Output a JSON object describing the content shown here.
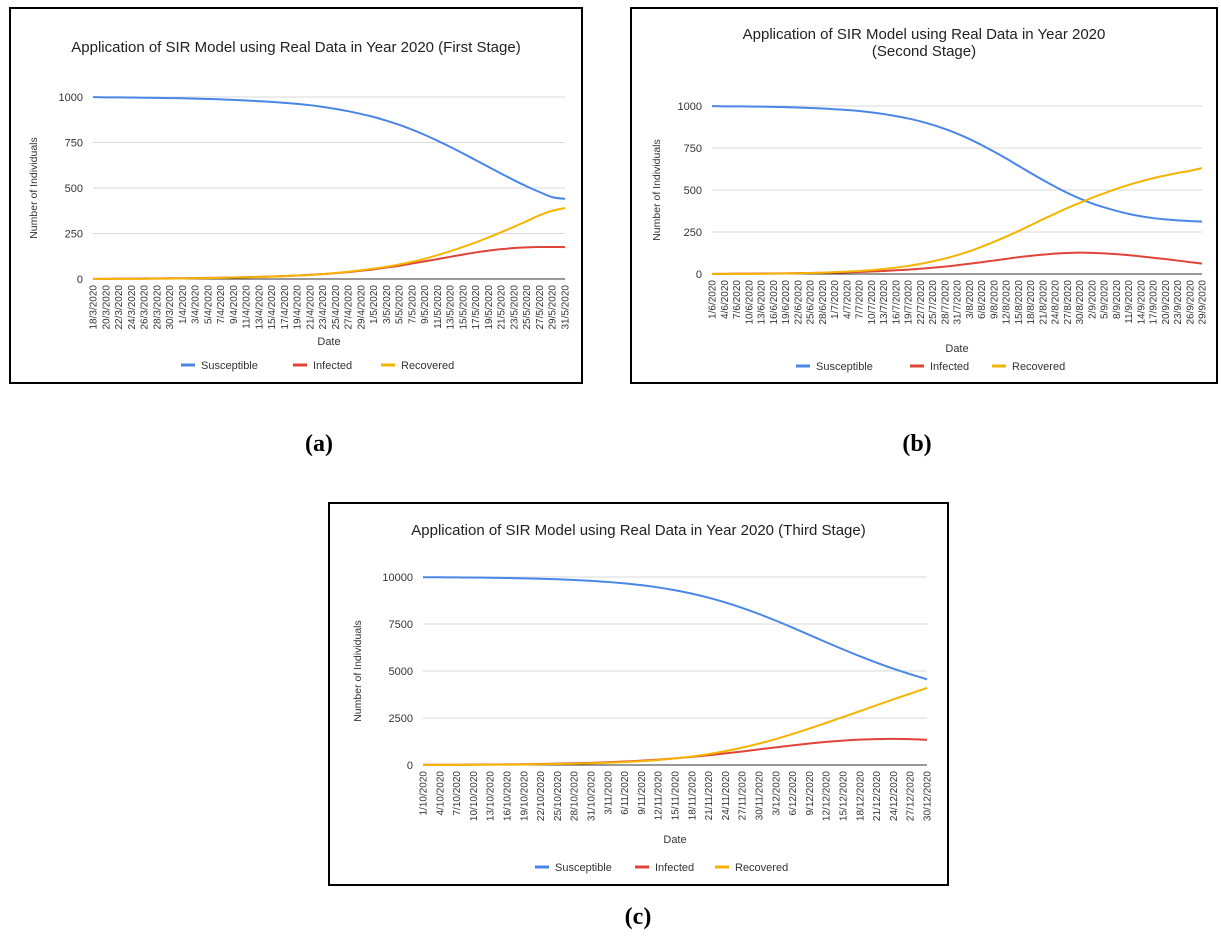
{
  "panels": [
    {
      "id": "a",
      "sublabel": "(a)",
      "chart_data": {
        "type": "line",
        "title": [
          "Application of SIR Model using Real Data in Year 2020 (First Stage)"
        ],
        "xlabel": "Date",
        "ylabel": "Number of Individuals",
        "ylim": [
          0,
          1000
        ],
        "yticks": [
          0,
          250,
          500,
          750,
          1000
        ],
        "grid": true,
        "legend": "bottom",
        "x": [
          "18/3/2020",
          "20/3/2020",
          "22/3/2020",
          "24/3/2020",
          "26/3/2020",
          "28/3/2020",
          "30/3/2020",
          "1/4/2020",
          "3/4/2020",
          "5/4/2020",
          "7/4/2020",
          "9/4/2020",
          "11/4/2020",
          "13/4/2020",
          "15/4/2020",
          "17/4/2020",
          "19/4/2020",
          "21/4/2020",
          "23/4/2020",
          "25/4/2020",
          "27/4/2020",
          "29/4/2020",
          "1/5/2020",
          "3/5/2020",
          "5/5/2020",
          "7/5/2020",
          "9/5/2020",
          "11/5/2020",
          "13/5/2020",
          "15/5/2020",
          "17/5/2020",
          "19/5/2020",
          "21/5/2020",
          "23/5/2020",
          "25/5/2020",
          "27/5/2020",
          "29/5/2020",
          "31/5/2020"
        ],
        "series": [
          {
            "name": "Susceptible",
            "color": "#4a86e8",
            "values": [
              999,
              998,
              998,
              997,
              996,
              995,
              994,
              993,
              991,
              989,
              987,
              984,
              981,
              977,
              973,
              968,
              962,
              955,
              946,
              935,
              922,
              907,
              890,
              870,
              847,
              821,
              792,
              760,
              726,
              690,
              653,
              616,
              579,
              543,
              509,
              478,
              450,
              440
            ]
          },
          {
            "name": "Infected",
            "color": "#e04438",
            "values": [
              1,
              1,
              2,
              2,
              3,
              3,
              4,
              4,
              5,
              6,
              7,
              8,
              10,
              12,
              14,
              16,
              19,
              23,
              27,
              32,
              38,
              45,
              53,
              63,
              73,
              85,
              97,
              109,
              122,
              134,
              146,
              156,
              164,
              170,
              174,
              176,
              176,
              175
            ]
          },
          {
            "name": "Recovered",
            "color": "#f4b400",
            "values": [
              0,
              1,
              1,
              1,
              1,
              2,
              2,
              3,
              4,
              5,
              6,
              8,
              9,
              11,
              13,
              16,
              19,
              22,
              27,
              33,
              40,
              48,
              57,
              67,
              80,
              94,
              111,
              131,
              152,
              176,
              201,
              228,
              257,
              287,
              318,
              350,
              375,
              390
            ]
          }
        ]
      }
    },
    {
      "id": "b",
      "sublabel": "(b)",
      "chart_data": {
        "type": "line",
        "title": [
          "Application of SIR Model using Real Data in Year 2020",
          "(Second Stage)"
        ],
        "xlabel": "Date",
        "ylabel": "Number of Individuals",
        "ylim": [
          0,
          1000
        ],
        "yticks": [
          0,
          250,
          500,
          750,
          1000
        ],
        "grid": true,
        "legend": "bottom",
        "x": [
          "1/6/2020",
          "4/6/2020",
          "7/6/2020",
          "10/6/2020",
          "13/6/2020",
          "16/6/2020",
          "19/6/2020",
          "22/6/2020",
          "25/6/2020",
          "28/6/2020",
          "1/7/2020",
          "4/7/2020",
          "7/7/2020",
          "10/7/2020",
          "13/7/2020",
          "16/7/2020",
          "19/7/2020",
          "22/7/2020",
          "25/7/2020",
          "28/7/2020",
          "31/7/2020",
          "3/8/2020",
          "6/8/2020",
          "9/8/2020",
          "12/8/2020",
          "15/8/2020",
          "18/8/2020",
          "21/8/2020",
          "24/8/2020",
          "27/8/2020",
          "30/8/2020",
          "2/9/2020",
          "5/9/2020",
          "8/9/2020",
          "11/9/2020",
          "14/9/2020",
          "17/9/2020",
          "20/9/2020",
          "23/9/2020",
          "26/9/2020",
          "29/9/2020"
        ],
        "series": [
          {
            "name": "Susceptible",
            "color": "#4a86e8",
            "values": [
              999,
              998,
              998,
              997,
              996,
              995,
              993,
              991,
              988,
              985,
              981,
              976,
              970,
              962,
              952,
              940,
              926,
              909,
              888,
              864,
              836,
              804,
              768,
              729,
              688,
              645,
              602,
              560,
              520,
              483,
              450,
              421,
              397,
              376,
              358,
              344,
              333,
              325,
              319,
              315,
              312
            ]
          },
          {
            "name": "Infected",
            "color": "#e04438",
            "values": [
              1,
              1,
              2,
              2,
              3,
              3,
              4,
              5,
              6,
              7,
              8,
              10,
              12,
              15,
              18,
              22,
              26,
              31,
              37,
              44,
              52,
              61,
              70,
              80,
              90,
              100,
              108,
              115,
              121,
              125,
              127,
              126,
              123,
              118,
              112,
              105,
              97,
              89,
              80,
              71,
              62
            ]
          },
          {
            "name": "Recovered",
            "color": "#f4b400",
            "values": [
              0,
              1,
              1,
              1,
              1,
              2,
              3,
              4,
              6,
              8,
              11,
              14,
              18,
              23,
              30,
              38,
              48,
              60,
              75,
              92,
              112,
              135,
              162,
              191,
              222,
              255,
              290,
              325,
              359,
              392,
              423,
              453,
              480,
              506,
              530,
              551,
              570,
              586,
              601,
              614,
              630
            ]
          }
        ]
      }
    },
    {
      "id": "c",
      "sublabel": "(c)",
      "chart_data": {
        "type": "line",
        "title": [
          "Application of SIR Model using Real Data in Year 2020 (Third Stage)"
        ],
        "xlabel": "Date",
        "ylabel": "Number of Individuals",
        "ylim": [
          0,
          10000
        ],
        "yticks": [
          0,
          2500,
          5000,
          7500,
          10000
        ],
        "grid": true,
        "legend": "bottom",
        "x": [
          "1/10/2020",
          "4/10/2020",
          "7/10/2020",
          "10/10/2020",
          "13/10/2020",
          "16/10/2020",
          "19/10/2020",
          "22/10/2020",
          "25/10/2020",
          "28/10/2020",
          "31/10/2020",
          "3/11/2020",
          "6/11/2020",
          "9/11/2020",
          "12/11/2020",
          "15/11/2020",
          "18/11/2020",
          "21/11/2020",
          "24/11/2020",
          "27/11/2020",
          "30/11/2020",
          "3/12/2020",
          "6/12/2020",
          "9/12/2020",
          "12/12/2020",
          "15/12/2020",
          "18/12/2020",
          "21/12/2020",
          "24/12/2020",
          "27/12/2020",
          "30/12/2020"
        ],
        "series": [
          {
            "name": "Susceptible",
            "color": "#4a86e8",
            "values": [
              9990,
              9985,
              9978,
              9970,
              9960,
              9947,
              9930,
              9908,
              9880,
              9843,
              9796,
              9737,
              9660,
              9565,
              9445,
              9297,
              9117,
              8900,
              8646,
              8355,
              8032,
              7680,
              7305,
              6920,
              6530,
              6150,
              5785,
              5440,
              5120,
              4830,
              4560
            ]
          },
          {
            "name": "Infected",
            "color": "#e04438",
            "values": [
              10,
              13,
              16,
              20,
              26,
              33,
              43,
              55,
              70,
              90,
              114,
              145,
              183,
              230,
              287,
              354,
              432,
              520,
              617,
              721,
              830,
              939,
              1045,
              1143,
              1229,
              1299,
              1350,
              1379,
              1387,
              1374,
              1340
            ]
          },
          {
            "name": "Recovered",
            "color": "#f4b400",
            "values": [
              0,
              2,
              6,
              10,
              14,
              20,
              27,
              37,
              50,
              67,
              90,
              118,
              157,
              205,
              268,
              349,
              451,
              580,
              737,
              924,
              1138,
              1381,
              1650,
              1937,
              2241,
              2551,
              2865,
              3181,
              3493,
              3796,
              4100
            ]
          }
        ]
      }
    }
  ]
}
